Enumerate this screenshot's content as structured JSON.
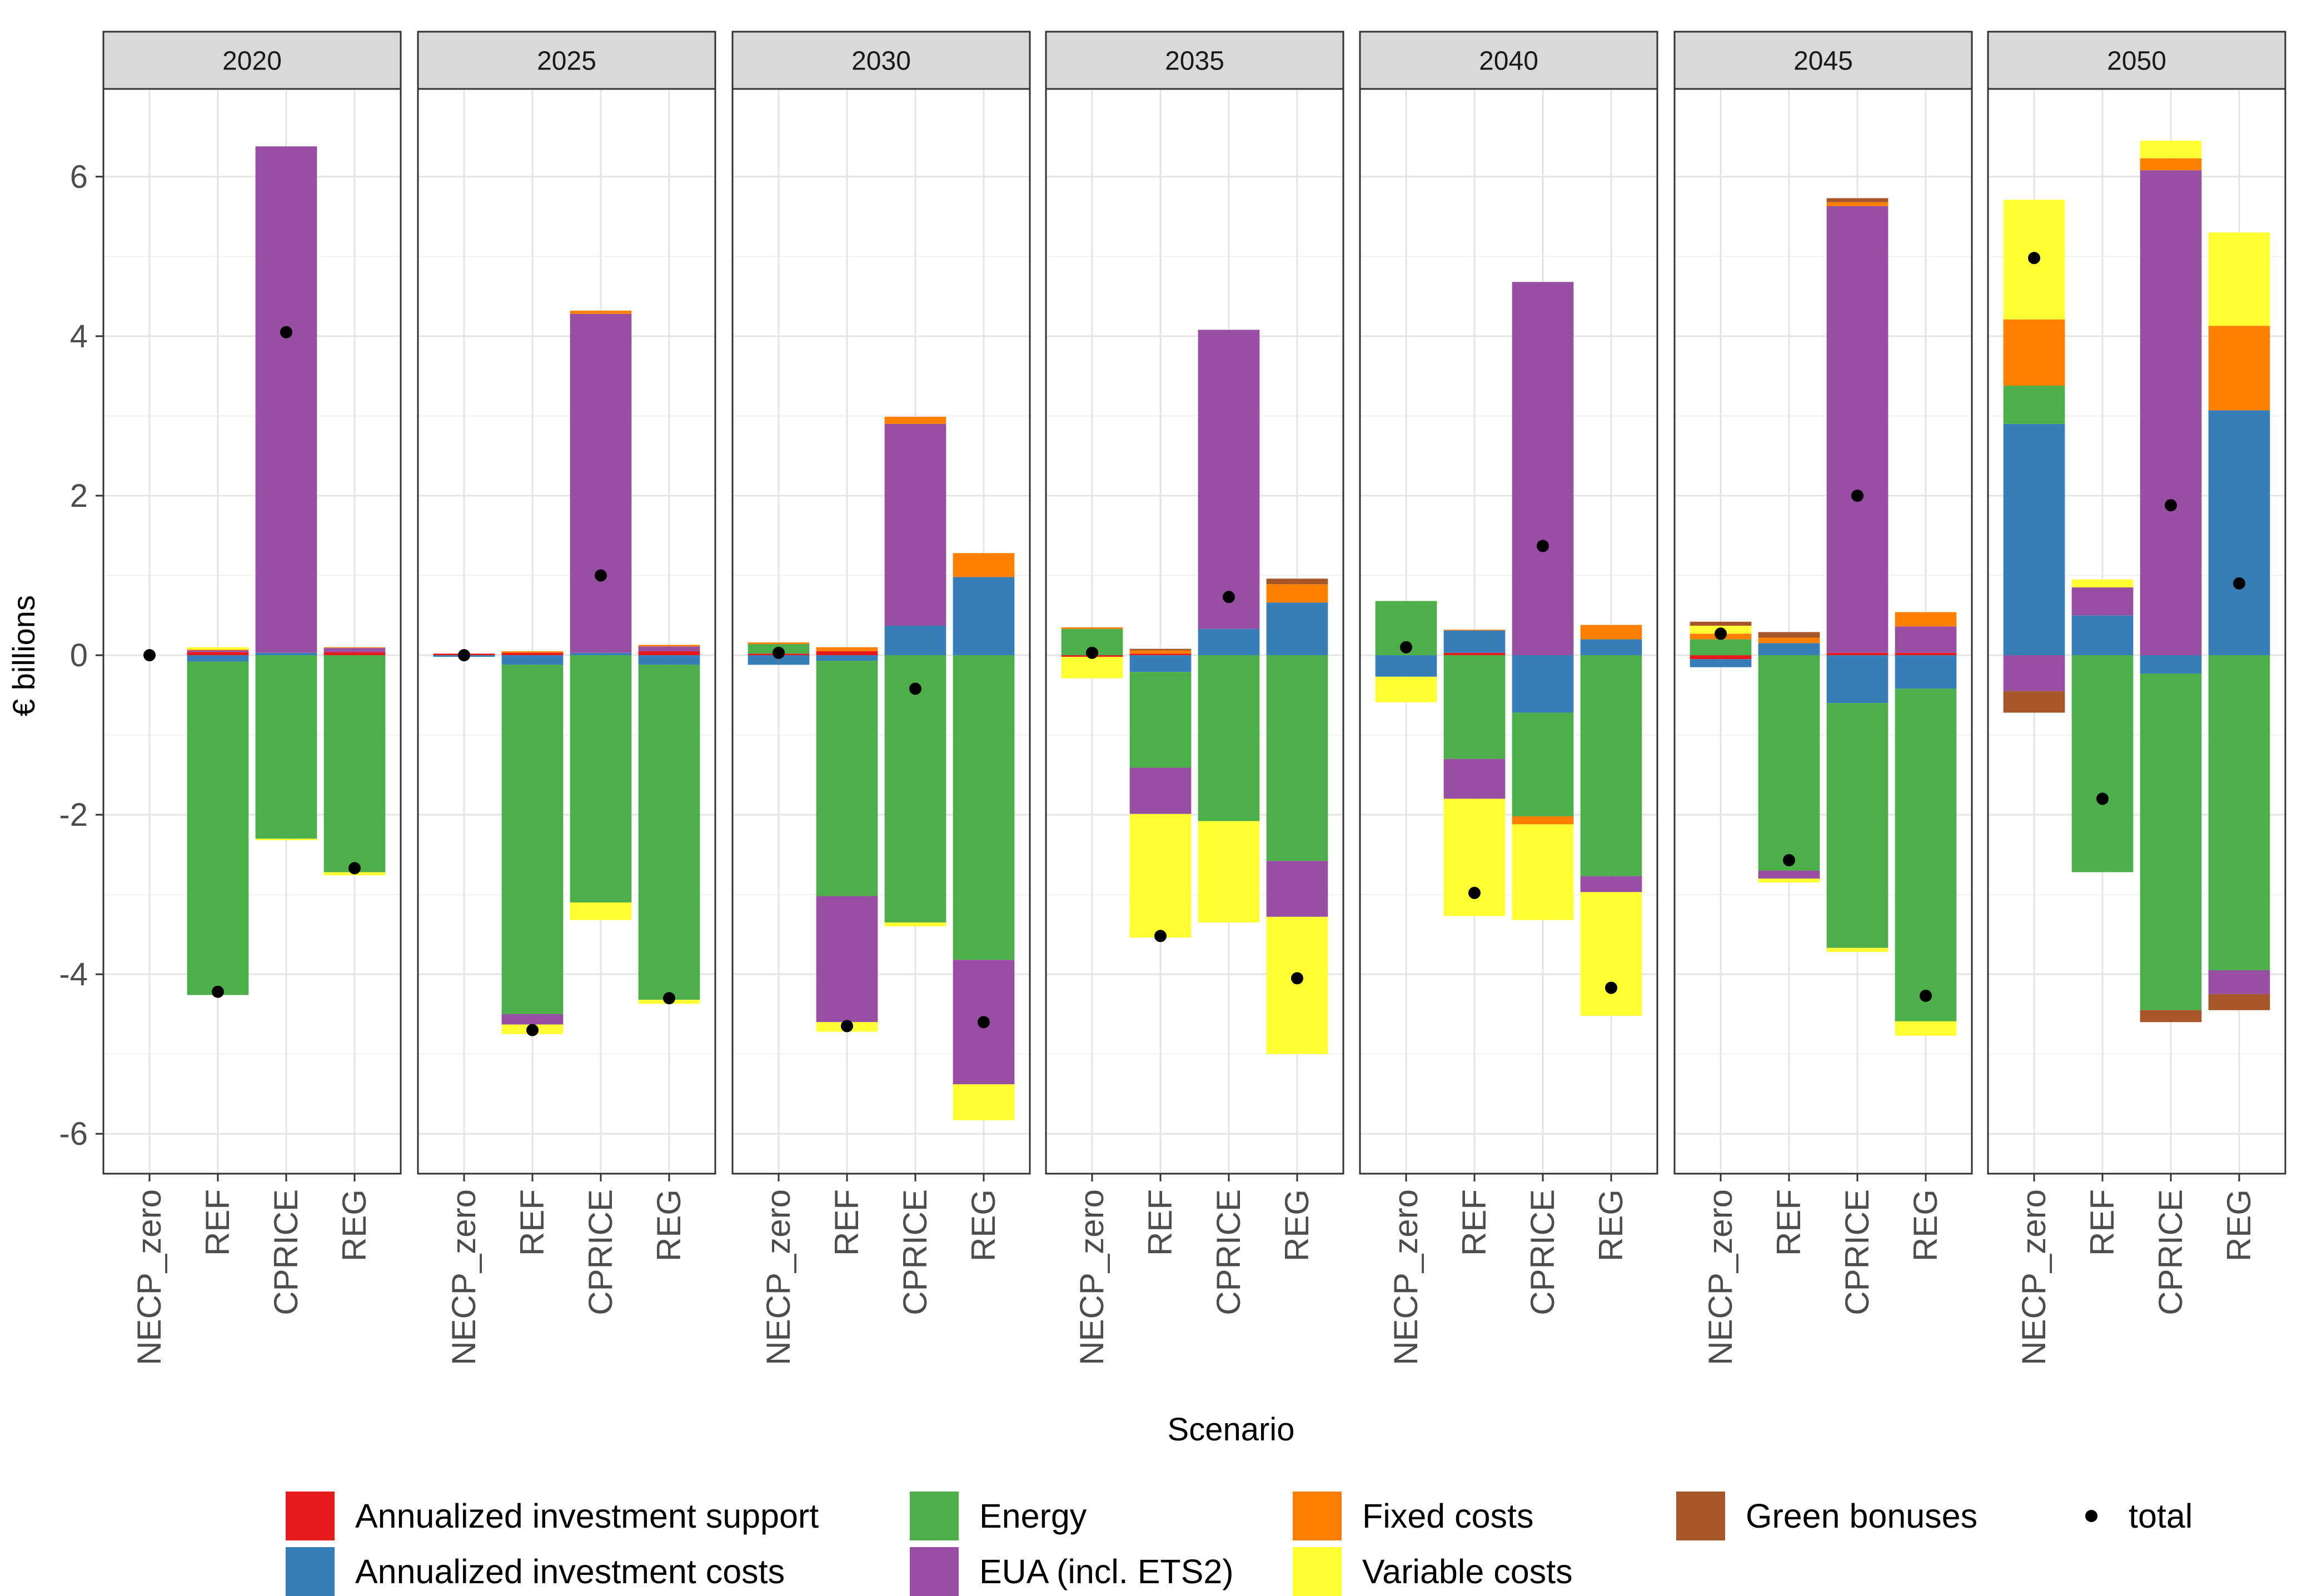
{
  "chart_data": {
    "type": "bar",
    "stacked": true,
    "facet_by": "year",
    "facets": [
      "2020",
      "2025",
      "2030",
      "2035",
      "2040",
      "2045",
      "2050"
    ],
    "categories": [
      "NECP_zero",
      "REF",
      "CPRICE",
      "REG"
    ],
    "xlabel": "Scenario",
    "ylabel": "€ billions",
    "ylim": [
      -6.5,
      7.1
    ],
    "yticks": [
      -6,
      -4,
      -2,
      0,
      2,
      4,
      6
    ],
    "yticks_major": [
      -6,
      -4,
      -2,
      0,
      2,
      4,
      6
    ],
    "ytick_labels": [
      "-6",
      "-4",
      "-2",
      "0",
      "2",
      "4",
      "6"
    ],
    "grid": true,
    "legend_position": "bottom",
    "series": [
      {
        "key": "support",
        "name": "Annualized investment support",
        "color": "#E41A1C"
      },
      {
        "key": "invest",
        "name": "Annualized investment costs",
        "color": "#377EB8"
      },
      {
        "key": "energy",
        "name": "Energy",
        "color": "#4DAF4A"
      },
      {
        "key": "eua",
        "name": "EUA (incl. ETS2)",
        "color": "#984EA3"
      },
      {
        "key": "fixed",
        "name": "Fixed costs",
        "color": "#FF7F00"
      },
      {
        "key": "variable",
        "name": "Variable costs",
        "color": "#FFFF33"
      },
      {
        "key": "green",
        "name": "Green bonuses",
        "color": "#A65628"
      }
    ],
    "total_label": "total",
    "data": {
      "2020": {
        "NECP_zero": {
          "total": 0.0,
          "components": {}
        },
        "REF": {
          "total": -4.22,
          "components": {
            "energy": -4.18,
            "invest": -0.08,
            "support": 0.04,
            "eua": 0.02,
            "fixed": 0.01,
            "variable": 0.03
          }
        },
        "CPRICE": {
          "total": 4.05,
          "components": {
            "energy": -2.3,
            "eua": 6.35,
            "invest": 0.03,
            "variable": -0.02
          }
        },
        "REG": {
          "total": -2.67,
          "components": {
            "energy": -2.72,
            "support": 0.04,
            "eua": 0.05,
            "fixed": 0.01,
            "variable": -0.04
          }
        }
      },
      "2025": {
        "NECP_zero": {
          "total": 0.0,
          "components": {
            "support": 0.02,
            "invest": -0.02
          }
        },
        "REF": {
          "total": -4.7,
          "components": {
            "energy": -4.38,
            "invest": -0.12,
            "eua": -0.13,
            "variable": -0.12,
            "fixed": 0.02,
            "support": 0.03
          }
        },
        "CPRICE": {
          "total": 1.0,
          "components": {
            "energy": -3.1,
            "eua": 4.25,
            "variable": -0.22,
            "fixed": 0.04,
            "invest": 0.03
          }
        },
        "REG": {
          "total": -4.3,
          "components": {
            "energy": -4.2,
            "invest": -0.12,
            "support": 0.05,
            "eua": 0.06,
            "fixed": 0.02,
            "variable": -0.05
          }
        }
      },
      "2030": {
        "NECP_zero": {
          "total": 0.03,
          "components": {
            "energy": 0.12,
            "invest": -0.12,
            "support": 0.02,
            "fixed": 0.02
          }
        },
        "REF": {
          "total": -4.65,
          "components": {
            "energy": -2.95,
            "eua": -1.58,
            "invest": -0.07,
            "variable": -0.12,
            "fixed": 0.05,
            "support": 0.05
          }
        },
        "CPRICE": {
          "total": -0.42,
          "components": {
            "energy": -3.35,
            "eua": 2.53,
            "invest": 0.37,
            "fixed": 0.09,
            "variable": -0.05
          }
        },
        "REG": {
          "total": -4.6,
          "components": {
            "energy": -3.82,
            "eua": -1.56,
            "variable": -0.45,
            "fixed": 0.3,
            "invest": 0.98
          }
        }
      },
      "2035": {
        "NECP_zero": {
          "total": 0.03,
          "components": {
            "energy": 0.33,
            "variable": -0.27,
            "fixed": 0.02,
            "support": -0.02
          }
        },
        "REF": {
          "total": -3.52,
          "components": {
            "variable": -1.55,
            "eua": -0.58,
            "energy": -1.2,
            "invest": -0.21,
            "fixed": 0.04,
            "green": 0.02,
            "support": 0.02
          }
        },
        "CPRICE": {
          "total": 0.73,
          "components": {
            "variable": -1.27,
            "energy": -2.08,
            "eua": 3.75,
            "invest": 0.33
          }
        },
        "REG": {
          "total": -4.05,
          "components": {
            "variable": -1.72,
            "eua": -0.7,
            "energy": -2.58,
            "green": 0.07,
            "fixed": 0.23,
            "invest": 0.66
          }
        }
      },
      "2040": {
        "NECP_zero": {
          "total": 0.1,
          "components": {
            "energy": 0.68,
            "variable": -0.32,
            "invest": -0.27
          }
        },
        "REF": {
          "total": -2.98,
          "components": {
            "variable": -1.47,
            "eua": -0.5,
            "energy": -1.3,
            "invest": 0.28,
            "support": 0.03,
            "fixed": 0.01
          }
        },
        "CPRICE": {
          "total": 1.37,
          "components": {
            "variable": -1.2,
            "fixed": -0.1,
            "energy": -1.3,
            "invest": -0.72,
            "eua": 4.68
          }
        },
        "REG": {
          "total": -4.17,
          "components": {
            "variable": -1.55,
            "eua": -0.2,
            "energy": -2.77,
            "fixed": 0.18,
            "invest": 0.2
          }
        }
      },
      "2045": {
        "NECP_zero": {
          "total": 0.27,
          "components": {
            "variable": 0.1,
            "fixed": 0.07,
            "green": 0.05,
            "energy": 0.2,
            "invest": -0.1,
            "support": -0.05
          }
        },
        "REF": {
          "total": -2.57,
          "components": {
            "variable": -0.05,
            "eua": -0.1,
            "energy": -2.7,
            "fixed": 0.07,
            "green": 0.07,
            "invest": 0.15
          }
        },
        "CPRICE": {
          "total": 2.0,
          "components": {
            "green": 0.05,
            "fixed": 0.05,
            "eua": 5.6,
            "support": 0.03,
            "variable": -0.05,
            "energy": -3.07,
            "invest": -0.6
          }
        },
        "REG": {
          "total": -4.27,
          "components": {
            "fixed": 0.18,
            "eua": 0.33,
            "support": 0.03,
            "variable": -0.18,
            "energy": -4.17,
            "invest": -0.42
          }
        }
      },
      "2050": {
        "NECP_zero": {
          "total": 4.98,
          "components": {
            "variable": 1.5,
            "fixed": 0.83,
            "energy": 0.48,
            "invest": 2.9,
            "green": -0.27,
            "eua": -0.45
          }
        },
        "REF": {
          "total": -1.8,
          "components": {
            "variable": 0.1,
            "eua": 0.35,
            "invest": 0.5,
            "energy": -2.72
          }
        },
        "CPRICE": {
          "total": 1.88,
          "components": {
            "variable": 0.22,
            "fixed": 0.15,
            "eua": 6.08,
            "green": -0.15,
            "energy": -4.22,
            "invest": -0.23
          }
        },
        "REG": {
          "total": 0.9,
          "components": {
            "variable": 1.17,
            "fixed": 1.06,
            "invest": 3.07,
            "green": -0.2,
            "eua": -0.3,
            "energy": -3.95
          }
        }
      }
    }
  }
}
